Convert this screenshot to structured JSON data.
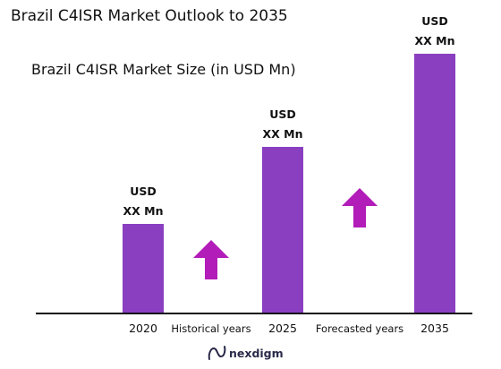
{
  "chart_data": {
    "type": "bar",
    "title": "Brazil C4ISR Market Outlook to 2035",
    "subtitle": "Brazil C4ISR Market Size (in USD Mn)",
    "categories": [
      "2020",
      "2025",
      "2035"
    ],
    "values": [
      1,
      1.86,
      2.9
    ],
    "data_labels": [
      [
        "USD",
        "XX Mn"
      ],
      [
        "USD",
        "XX Mn"
      ],
      [
        "USD",
        "XX Mn"
      ]
    ],
    "ylim": [
      0,
      3.1
    ],
    "grid": false,
    "legend": "none",
    "bar_color": "#8a3fc1",
    "annotations": [
      {
        "label": "Historical years",
        "arrow": "up",
        "color": "#b21cb8"
      },
      {
        "label": "Forecasted years",
        "arrow": "up",
        "color": "#b21cb8"
      }
    ]
  },
  "brand": {
    "name": "nexdigm",
    "logo_icon": "nexdigm-logo-icon",
    "color": "#2a2a4a"
  }
}
